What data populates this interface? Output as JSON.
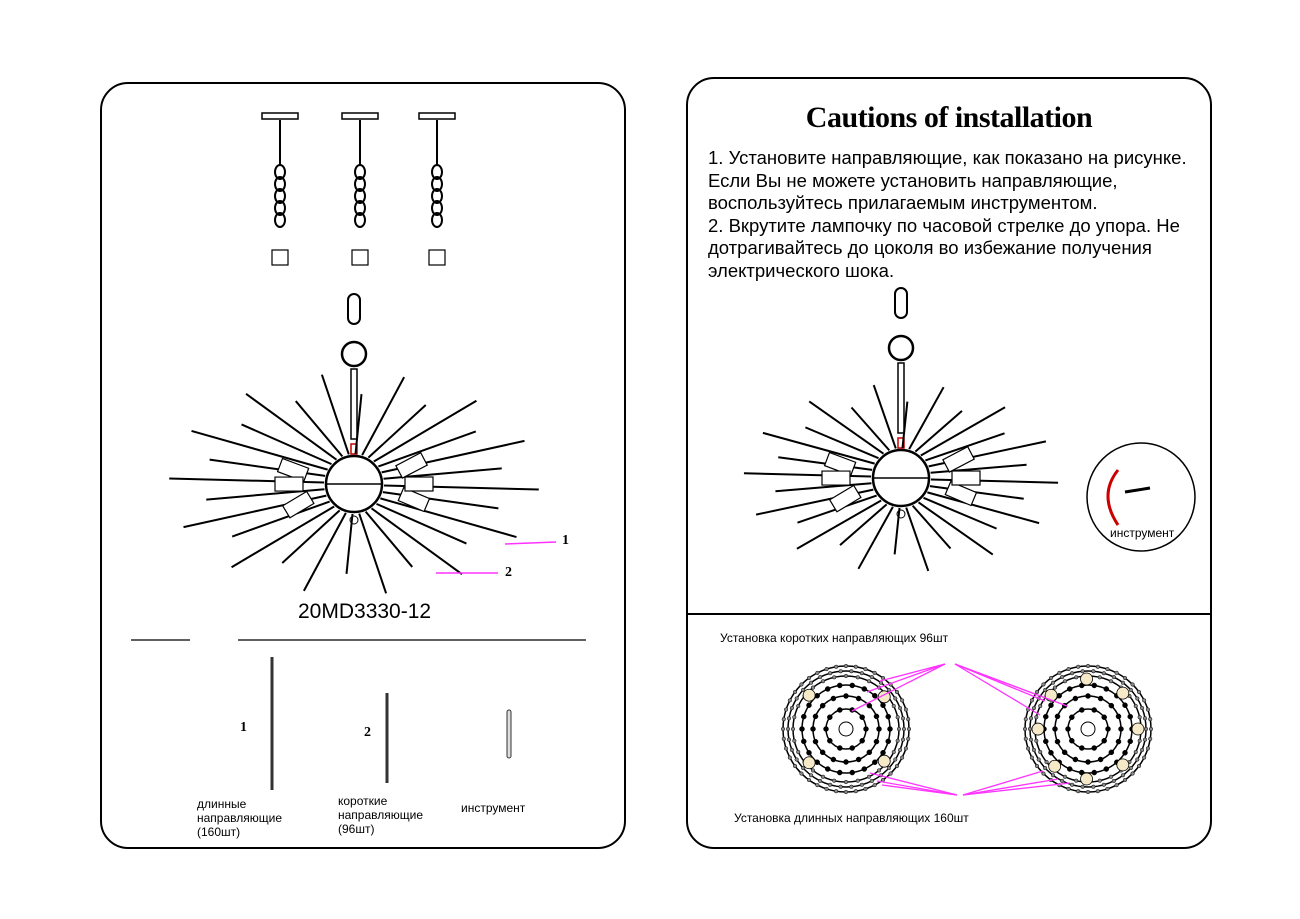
{
  "left_page": {
    "model_number": "20MD3330-12",
    "callouts": [
      "1",
      "2"
    ],
    "parts": [
      {
        "number": "1",
        "label": "длинные\nнаправляющие\n(160шт)"
      },
      {
        "number": "2",
        "label": "короткие\nнаправляющие\n(96шт)"
      },
      {
        "number": "",
        "label": "инструмент"
      }
    ],
    "mount_options_count": 3
  },
  "right_page": {
    "title": "Cautions of installation",
    "instructions": "1. Установите направляющие, как показано на рисунке.\nЕсли Вы не можете установить направляющие,\nвоспользуйтесь прилагаемым инструментом.\n2. Вкрутите лампочку по часовой стрелке до упора. Не\nдотрагивайтесь до цоколя во избежание получения\nэлектрического шока.",
    "tool_label": "инструмент",
    "short_guides_label": "Установка коротких направляющих 96шт",
    "long_guides_label": "Установка длинных направляющих 160шт"
  },
  "colors": {
    "callout_line": "#ff33ff",
    "accent_red": "#cc0000",
    "bulb_fill": "#f5e9c8"
  }
}
